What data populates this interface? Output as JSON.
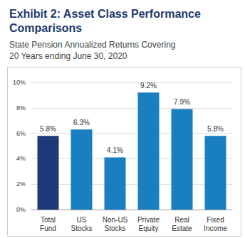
{
  "chart_data": {
    "type": "bar",
    "title": "Exhibit 2: Asset Class Performance Comparisons",
    "subtitle": "State Pension Annualized Returns Covering 20 Years ending June 30, 2020",
    "categories": [
      "Total Fund",
      "US Stocks",
      "Non-US Stocks",
      "Private Equity",
      "Real Estate",
      "Fixed Income"
    ],
    "values": [
      5.8,
      6.3,
      4.1,
      9.2,
      7.9,
      5.8
    ],
    "value_labels": [
      "5.8%",
      "6.3%",
      "4.1%",
      "9.2%",
      "7.9%",
      "5.8%"
    ],
    "colors": [
      "#1e3a78",
      "#1a7fc1",
      "#1a7fc1",
      "#1a7fc1",
      "#1a7fc1",
      "#1a7fc1"
    ],
    "ylim": [
      0,
      10
    ],
    "yticks": [
      {
        "value": 0,
        "label": "0%"
      },
      {
        "value": 2,
        "label": "2%"
      },
      {
        "value": 4,
        "label": "4%"
      },
      {
        "value": 6,
        "label": "6%"
      },
      {
        "value": 8,
        "label": "8%"
      },
      {
        "value": 10,
        "label": "10%"
      }
    ],
    "grid": true,
    "data_labels": true
  }
}
